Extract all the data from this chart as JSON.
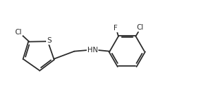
{
  "background_color": "#ffffff",
  "bond_color": "#2a2a2a",
  "atom_colors": {
    "Cl": "#2a2a2a",
    "F": "#2a2a2a",
    "S": "#2a2a2a",
    "N": "#2a2a2a"
  },
  "figsize": [
    2.98,
    1.47
  ],
  "dpi": 100,
  "lw": 1.3,
  "fs": 7.5
}
